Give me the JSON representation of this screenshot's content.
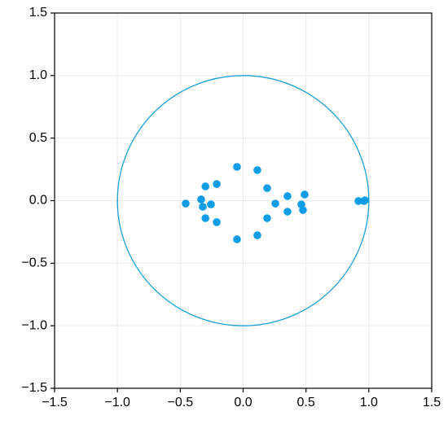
{
  "chart_data": {
    "type": "scatter",
    "x": [
      -0.457,
      -0.334,
      -0.3,
      -0.321,
      -0.3,
      -0.256,
      -0.21,
      -0.21,
      -0.049,
      -0.049,
      0.113,
      0.113,
      0.191,
      0.191,
      0.256,
      0.353,
      0.353,
      0.463,
      0.476,
      0.489,
      0.917,
      0.962,
      0.969
    ],
    "y": [
      -0.023,
      0.01,
      0.114,
      -0.049,
      -0.14,
      -0.03,
      0.133,
      -0.172,
      0.27,
      -0.309,
      0.244,
      -0.277,
      0.1,
      -0.14,
      -0.023,
      0.036,
      -0.088,
      -0.03,
      -0.075,
      0.049,
      -0.003,
      -0.003,
      0.003
    ],
    "color": "#0f9de8",
    "unit_circle": {
      "radius": 1,
      "color": "#1b9fd6"
    },
    "xlim": [
      -1.5,
      1.5
    ],
    "ylim": [
      -1.5,
      1.5
    ],
    "xticks": [
      {
        "value": -1.5,
        "label": "−1.5"
      },
      {
        "value": -1,
        "label": "−1.0"
      },
      {
        "value": -0.5,
        "label": "−0.5"
      },
      {
        "value": 0,
        "label": "0.0"
      },
      {
        "value": 0.5,
        "label": "0.5"
      },
      {
        "value": 1,
        "label": "1.0"
      },
      {
        "value": 1.5,
        "label": "1.5"
      }
    ],
    "yticks": [
      {
        "value": -1.5,
        "label": "−1.5"
      },
      {
        "value": -1,
        "label": "−1.0"
      },
      {
        "value": -0.5,
        "label": "−0.5"
      },
      {
        "value": 0,
        "label": "0.0"
      },
      {
        "value": 0.5,
        "label": "0.5"
      },
      {
        "value": 1,
        "label": "1.0"
      },
      {
        "value": 1.5,
        "label": "1.5"
      }
    ],
    "grid": true
  }
}
